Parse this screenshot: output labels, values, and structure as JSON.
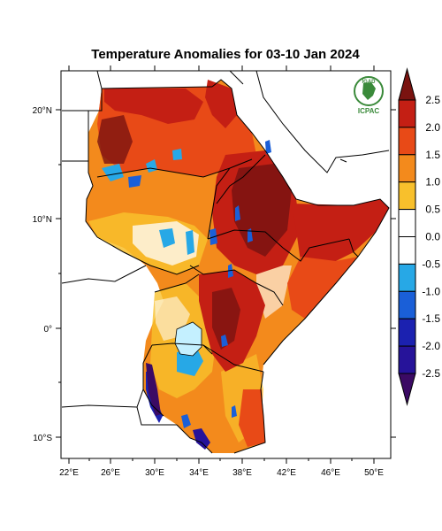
{
  "title": "Temperature Anomalies for 03-10 Jan 2024",
  "map": {
    "lon_labels": [
      "22°E",
      "26°E",
      "30°E",
      "34°E",
      "38°E",
      "42°E",
      "46°E",
      "50°E"
    ],
    "lat_labels": [
      "20°N",
      "10°N",
      "0°",
      "10°S"
    ]
  },
  "logo": {
    "top_text": "IGAD",
    "bottom_text": "ICPAC"
  },
  "colorbar": {
    "labels": [
      "2.5",
      "2.0",
      "1.5",
      "1.0",
      "0.5",
      "0.0",
      "-0.5",
      "-1.0",
      "-1.5",
      "-2.0",
      "-2.5"
    ],
    "colors": [
      "#7a1310",
      "#c41f14",
      "#e84a17",
      "#f38a1c",
      "#f8c02c",
      "#ffffff",
      "#ffffff",
      "#27a8e6",
      "#1a5fd8",
      "#1b21b0",
      "#26139a",
      "#3b0a64"
    ]
  }
}
